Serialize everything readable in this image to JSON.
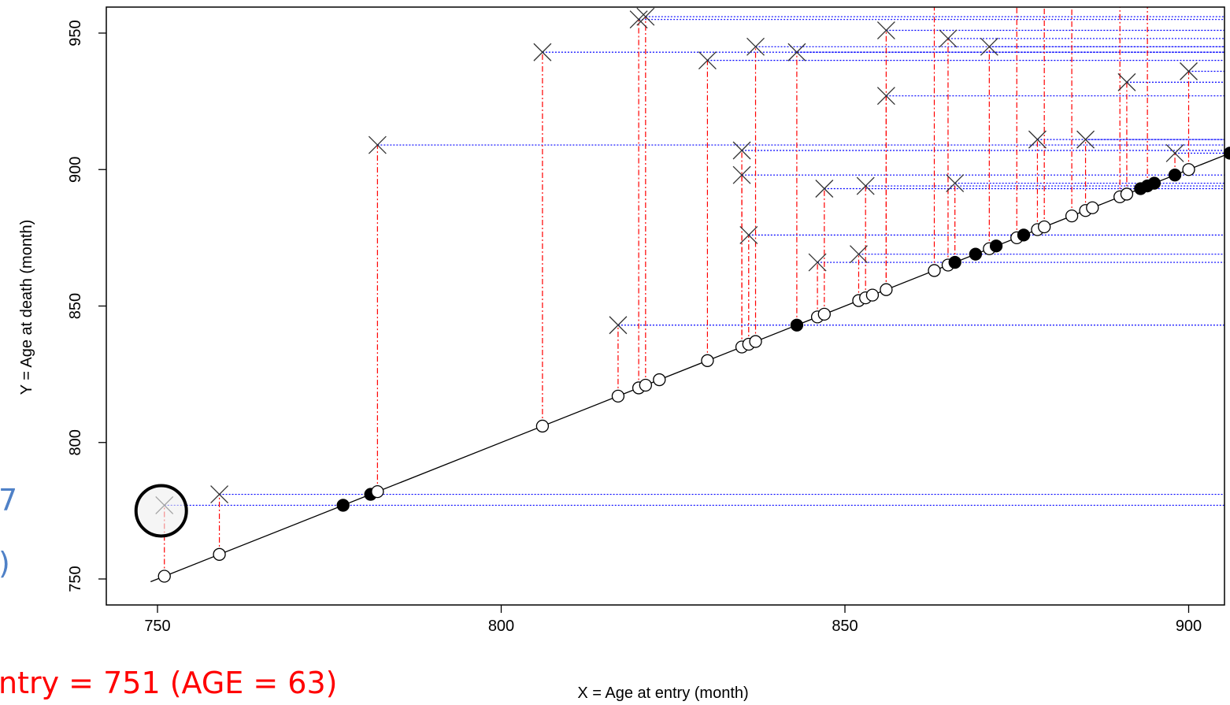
{
  "chart_data": {
    "type": "scatter",
    "xlabel": "X = Age at entry (month)",
    "ylabel": "Y = Age at death (month)",
    "xlim": [
      740,
      906
    ],
    "ylim": [
      741,
      958
    ],
    "x_ticks": [
      750,
      800,
      850,
      900
    ],
    "y_ticks": [
      750,
      800,
      850,
      900,
      950
    ],
    "reference_line": {
      "from": [
        749,
        749
      ],
      "to": [
        906,
        906
      ]
    },
    "entry_points": [
      {
        "x": 751,
        "filled": false
      },
      {
        "x": 759,
        "filled": false
      },
      {
        "x": 777,
        "filled": true
      },
      {
        "x": 781,
        "filled": true
      },
      {
        "x": 782,
        "filled": false
      },
      {
        "x": 806,
        "filled": false
      },
      {
        "x": 817,
        "filled": false
      },
      {
        "x": 820,
        "filled": false
      },
      {
        "x": 821,
        "filled": false
      },
      {
        "x": 823,
        "filled": false
      },
      {
        "x": 830,
        "filled": false
      },
      {
        "x": 835,
        "filled": false
      },
      {
        "x": 836,
        "filled": false
      },
      {
        "x": 837,
        "filled": false
      },
      {
        "x": 843,
        "filled": true
      },
      {
        "x": 846,
        "filled": false
      },
      {
        "x": 847,
        "filled": false
      },
      {
        "x": 852,
        "filled": false
      },
      {
        "x": 853,
        "filled": false
      },
      {
        "x": 854,
        "filled": false
      },
      {
        "x": 856,
        "filled": false
      },
      {
        "x": 863,
        "filled": false
      },
      {
        "x": 865,
        "filled": false
      },
      {
        "x": 866,
        "filled": true
      },
      {
        "x": 869,
        "filled": true
      },
      {
        "x": 871,
        "filled": false
      },
      {
        "x": 872,
        "filled": true
      },
      {
        "x": 875,
        "filled": false
      },
      {
        "x": 876,
        "filled": true
      },
      {
        "x": 878,
        "filled": false
      },
      {
        "x": 879,
        "filled": false
      },
      {
        "x": 883,
        "filled": false
      },
      {
        "x": 885,
        "filled": false
      },
      {
        "x": 886,
        "filled": false
      },
      {
        "x": 890,
        "filled": false
      },
      {
        "x": 891,
        "filled": false
      },
      {
        "x": 893,
        "filled": true
      },
      {
        "x": 894,
        "filled": true
      },
      {
        "x": 895,
        "filled": true
      },
      {
        "x": 898,
        "filled": true
      },
      {
        "x": 900,
        "filled": false
      },
      {
        "x": 906,
        "filled": true
      }
    ],
    "death_points": [
      {
        "entry": 751,
        "death": 777
      },
      {
        "entry": 759,
        "death": 781
      },
      {
        "entry": 782,
        "death": 909
      },
      {
        "entry": 806,
        "death": 943
      },
      {
        "entry": 817,
        "death": 843
      },
      {
        "entry": 820,
        "death": 955
      },
      {
        "entry": 821,
        "death": 956
      },
      {
        "entry": 830,
        "death": 940
      },
      {
        "entry": 835,
        "death": 907
      },
      {
        "entry": 835,
        "death": 898
      },
      {
        "entry": 836,
        "death": 876
      },
      {
        "entry": 837,
        "death": 945
      },
      {
        "entry": 843,
        "death": 943
      },
      {
        "entry": 846,
        "death": 866
      },
      {
        "entry": 847,
        "death": 893
      },
      {
        "entry": 852,
        "death": 869
      },
      {
        "entry": 853,
        "death": 894
      },
      {
        "entry": 856,
        "death": 951
      },
      {
        "entry": 856,
        "death": 927
      },
      {
        "entry": 865,
        "death": 948
      },
      {
        "entry": 866,
        "death": 895
      },
      {
        "entry": 871,
        "death": 945
      },
      {
        "entry": 878,
        "death": 911
      },
      {
        "entry": 885,
        "death": 911
      },
      {
        "entry": 891,
        "death": 932
      },
      {
        "entry": 898,
        "death": 906
      },
      {
        "entry": 900,
        "death": 936
      }
    ],
    "dotted_vertical_entries": [
      863,
      875,
      879,
      883,
      890,
      894
    ],
    "highlight": {
      "x": 751,
      "y": 777
    },
    "annotations": {
      "red_text": "ntry = 751 (AGE = 63)",
      "blue_line1": "7",
      "blue_line2": ")"
    },
    "colors": {
      "vertical_connector": "#ff0000",
      "horizontal_connector": "#0000ff",
      "annotation_red": "#ff0000",
      "annotation_blue": "#4f81c7",
      "highlight_fill": "#eeeeee"
    }
  }
}
